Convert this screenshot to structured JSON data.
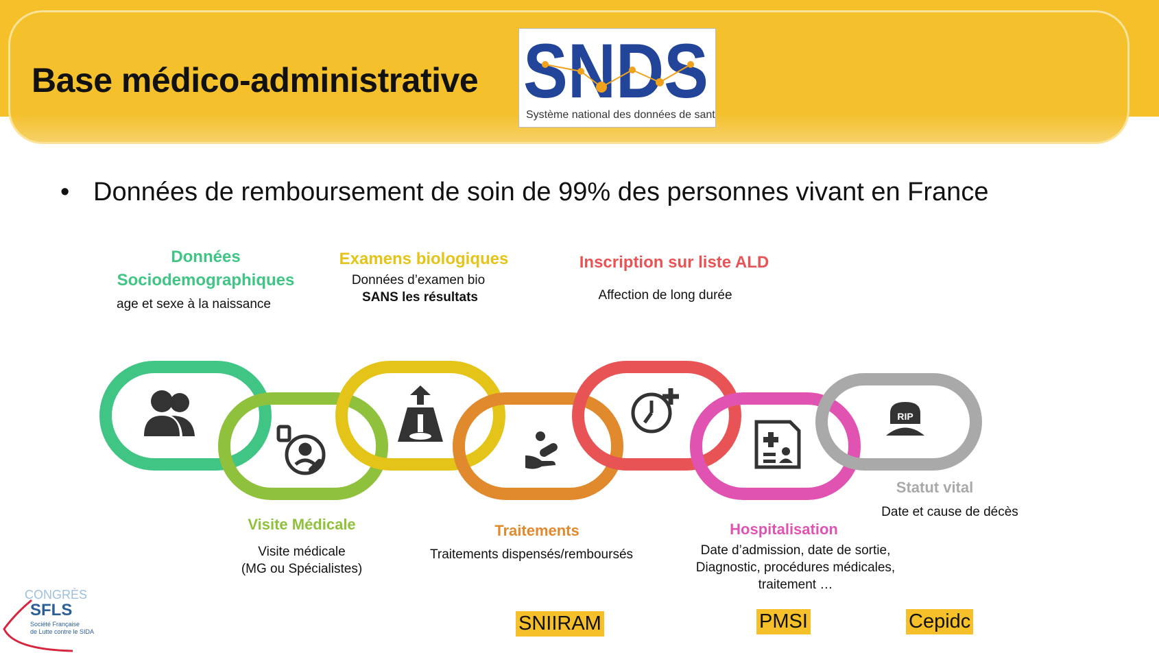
{
  "header": {
    "title": "Base médico-administrative"
  },
  "logo": {
    "acronym": "SNDS",
    "subtitle": "Système national des données de santé"
  },
  "bullet": {
    "symbol": "•",
    "text": "Données de remboursement de soin de 99% des personnes vivant en France"
  },
  "categories": {
    "socio": {
      "title_line1": "Données",
      "title_line2": "Sociodemographiques",
      "desc": "age et sexe à la naissance",
      "color": "#40c585",
      "icon": "two-people-icon"
    },
    "bio": {
      "title": "Examens biologiques",
      "desc_line1": "Données d’examen bio",
      "desc_line2": "SANS les résultats",
      "color": "#e5c419",
      "icon": "lab-flask-icon"
    },
    "ald": {
      "title": "Inscription sur liste ALD",
      "desc": "Affection de long durée",
      "color": "#e85455",
      "icon": "clock-plus-icon"
    },
    "visite": {
      "title": "Visite Médicale",
      "desc_line1": "Visite médicale",
      "desc_line2": "(MG ou Spécialistes)",
      "color": "#8fc13c",
      "icon": "doctor-consult-icon"
    },
    "traitements": {
      "title": "Traitements",
      "desc": "Traitements dispensés/remboursés",
      "color": "#e08a2d",
      "icon": "hand-pill-icon"
    },
    "hospit": {
      "title": "Hospitalisation",
      "desc_line1": "Date d’admission, date de sortie,",
      "desc_line2": "Diagnostic, procédures médicales,",
      "desc_line3": "traitement  …",
      "color": "#e053b1",
      "icon": "medical-record-icon"
    },
    "statut": {
      "title": "Statut vital",
      "desc": "Date et cause de décès",
      "color": "#a9a9a9",
      "icon": "rip-tombstone-icon"
    }
  },
  "sources": {
    "sniiram": "SNIIRAM",
    "pmsi": "PMSI",
    "cepidc": "Cepidc"
  },
  "footer_logo": {
    "line1": "CONGRÈS",
    "line2": "SFLS",
    "line3": "Société Française",
    "line4": "de Lutte contre le SIDA"
  }
}
